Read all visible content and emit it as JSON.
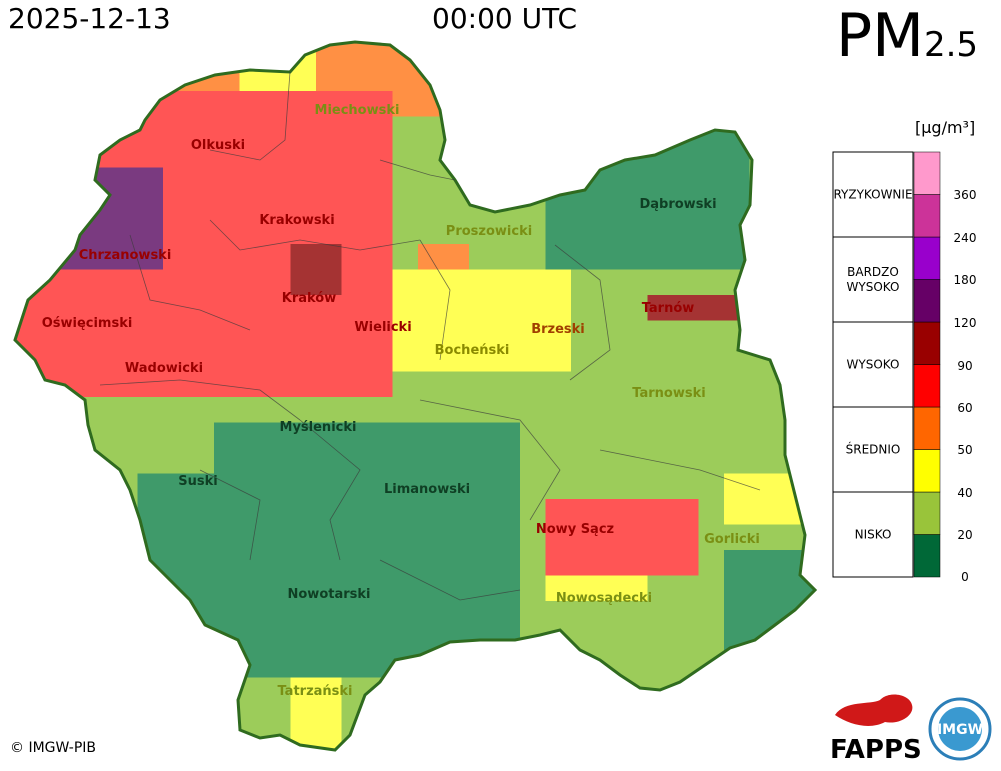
{
  "header": {
    "date": "2025-12-13",
    "time": "00:00 UTC",
    "pollutant_main": "PM",
    "pollutant_sub": "2.5",
    "unit": "[µg/m³]"
  },
  "copyright": "© IMGW-PIB",
  "logos": {
    "fapps": "FAPPS",
    "imgw": "IMGW"
  },
  "legend": {
    "categories": [
      "RYZYKOWNIE",
      "BARDZO WYSOKO",
      "WYSOKO",
      "ŚREDNIO",
      "NISKO"
    ],
    "ticks": [
      "360",
      "240",
      "180",
      "120",
      "90",
      "60",
      "50",
      "40",
      "20",
      "0"
    ],
    "colors": [
      "#006837",
      "#99c43a",
      "#ffff00",
      "#ff6600",
      "#ff0000",
      "#990000",
      "#660066",
      "#9900cc",
      "#cc3399",
      "#ff99cc"
    ]
  },
  "districts": [
    {
      "name": "Miechowski",
      "level": 1
    },
    {
      "name": "Olkuski",
      "level": 4
    },
    {
      "name": "Dąbrowski",
      "level": 0
    },
    {
      "name": "Krakowski",
      "level": 4
    },
    {
      "name": "Proszowicki",
      "level": 1
    },
    {
      "name": "Chrzanowski",
      "level": 4
    },
    {
      "name": "Kraków",
      "level": 4
    },
    {
      "name": "Tarnów",
      "level": 4
    },
    {
      "name": "Oświęcimski",
      "level": 4
    },
    {
      "name": "Wielicki",
      "level": 4
    },
    {
      "name": "Brzeski",
      "level": 3
    },
    {
      "name": "Bocheński",
      "level": 2
    },
    {
      "name": "Wadowicki",
      "level": 4
    },
    {
      "name": "Tarnowski",
      "level": 1
    },
    {
      "name": "Myślenicki",
      "level": 0
    },
    {
      "name": "Suski",
      "level": 0
    },
    {
      "name": "Limanowski",
      "level": 0
    },
    {
      "name": "Nowy Sącz",
      "level": 4
    },
    {
      "name": "Gorlicki",
      "level": 1
    },
    {
      "name": "Nowotarski",
      "level": 0
    },
    {
      "name": "Nowosądecki",
      "level": 1
    },
    {
      "name": "Tatrzański",
      "level": 1
    }
  ]
}
